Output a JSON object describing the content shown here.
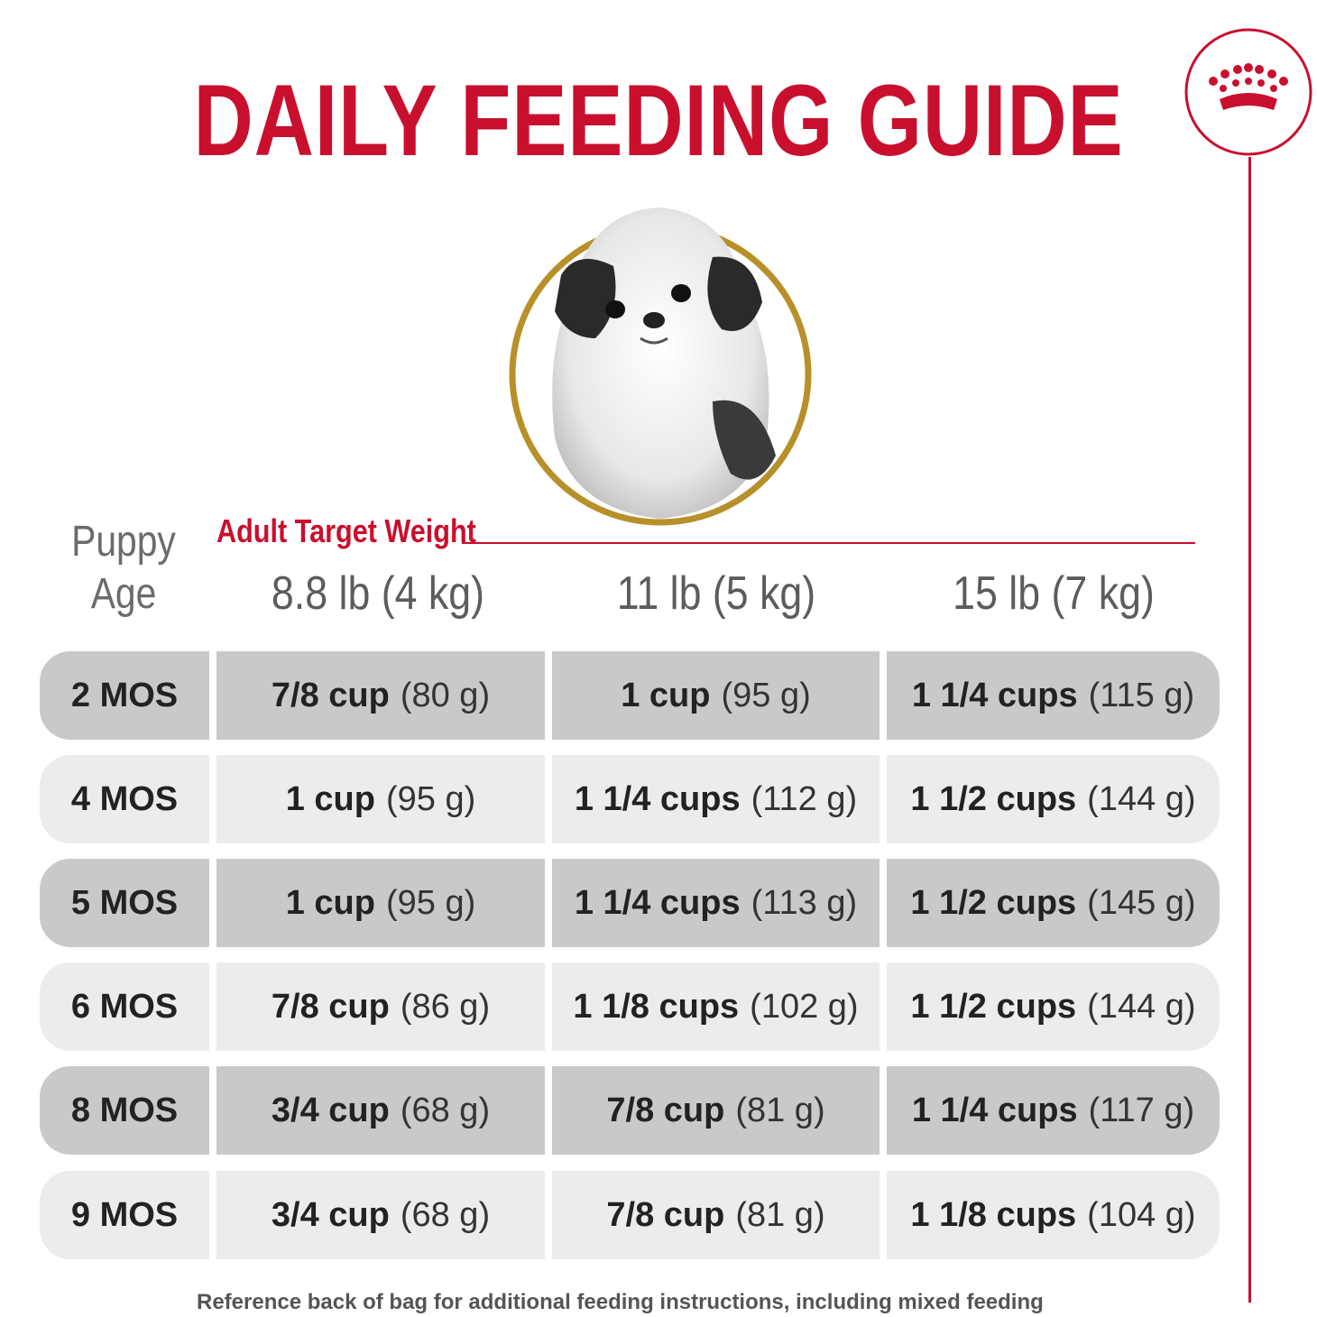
{
  "title": "DAILY FEEDING GUIDE",
  "colors": {
    "brand_red": "#c8102e",
    "gold": "#b8902a",
    "row_dark": "#c9c9c9",
    "row_light": "#ececec"
  },
  "icons": {
    "logo": "crown-icon",
    "photo": "puppy-photo"
  },
  "header": {
    "puppy_age": [
      "Puppy",
      "Age"
    ],
    "adult_target_weight": "Adult Target Weight",
    "weights": [
      "8.8 lb (4 kg)",
      "11 lb (5 kg)",
      "15 lb (7 kg)"
    ]
  },
  "rows": [
    {
      "age": "2 MOS",
      "cells": [
        {
          "amount": "7/8 cup",
          "grams": "(80 g)"
        },
        {
          "amount": "1 cup",
          "grams": "(95 g)"
        },
        {
          "amount": "1 1/4 cups",
          "grams": "(115 g)"
        }
      ]
    },
    {
      "age": "4 MOS",
      "cells": [
        {
          "amount": "1 cup",
          "grams": "(95 g)"
        },
        {
          "amount": "1 1/4 cups",
          "grams": "(112 g)"
        },
        {
          "amount": "1 1/2 cups",
          "grams": "(144 g)"
        }
      ]
    },
    {
      "age": "5 MOS",
      "cells": [
        {
          "amount": "1 cup",
          "grams": "(95 g)"
        },
        {
          "amount": "1 1/4 cups",
          "grams": "(113 g)"
        },
        {
          "amount": "1 1/2 cups",
          "grams": "(145 g)"
        }
      ]
    },
    {
      "age": "6 MOS",
      "cells": [
        {
          "amount": "7/8 cup",
          "grams": "(86 g)"
        },
        {
          "amount": "1 1/8 cups",
          "grams": "(102 g)"
        },
        {
          "amount": "1 1/2 cups",
          "grams": "(144 g)"
        }
      ]
    },
    {
      "age": "8 MOS",
      "cells": [
        {
          "amount": "3/4 cup",
          "grams": "(68 g)"
        },
        {
          "amount": "7/8 cup",
          "grams": "(81 g)"
        },
        {
          "amount": "1 1/4 cups",
          "grams": "(117 g)"
        }
      ]
    },
    {
      "age": "9 MOS",
      "cells": [
        {
          "amount": "3/4 cup",
          "grams": "(68 g)"
        },
        {
          "amount": "7/8 cup",
          "grams": "(81 g)"
        },
        {
          "amount": "1 1/8 cups",
          "grams": "(104 g)"
        }
      ]
    }
  ],
  "footnote": "Reference back of bag for additional feeding instructions, including mixed feeding"
}
